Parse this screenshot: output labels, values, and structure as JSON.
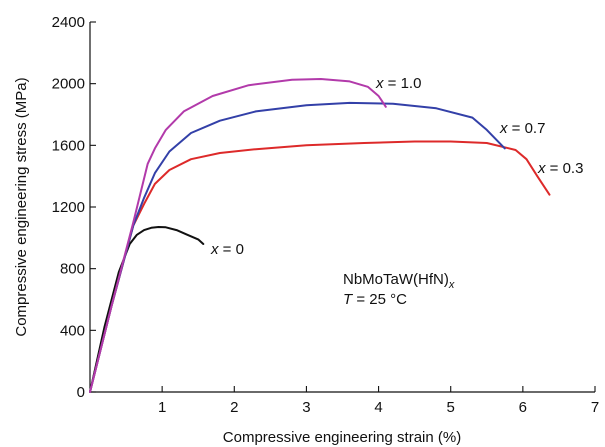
{
  "chart_data": {
    "type": "line",
    "xlabel": "Compressive engineering strain (%)",
    "ylabel": "Compressive engineering stress (MPa)",
    "xlim": [
      0,
      7
    ],
    "ylim": [
      0,
      2400
    ],
    "xticks": [
      1,
      2,
      3,
      4,
      5,
      6,
      7
    ],
    "yticks": [
      0,
      400,
      800,
      1200,
      1600,
      2000,
      2400
    ],
    "grid": false,
    "annotation": {
      "formula_main": "NbMoTaW(HfN)",
      "formula_sub": "x",
      "temp_var": "T",
      "temp_value": " = 25 °C"
    },
    "series": [
      {
        "name": "x = 0",
        "label_var": "x",
        "label_value": " = 0",
        "color": "#111111",
        "x": [
          0.0,
          0.2,
          0.4,
          0.55,
          0.65,
          0.75,
          0.85,
          0.95,
          1.05,
          1.2,
          1.35,
          1.5,
          1.57
        ],
        "y": [
          0,
          420,
          780,
          960,
          1020,
          1050,
          1065,
          1070,
          1068,
          1050,
          1020,
          990,
          960
        ]
      },
      {
        "name": "x = 0.3",
        "label_var": "x",
        "label_value": " = 0.3",
        "color": "#dd2a2a",
        "x": [
          0.0,
          0.3,
          0.6,
          0.75,
          0.9,
          1.1,
          1.4,
          1.8,
          2.3,
          3.0,
          3.8,
          4.5,
          5.0,
          5.5,
          5.9,
          6.05,
          6.2,
          6.37
        ],
        "y": [
          0,
          560,
          1080,
          1220,
          1350,
          1440,
          1510,
          1550,
          1575,
          1600,
          1615,
          1625,
          1625,
          1615,
          1570,
          1510,
          1400,
          1280
        ]
      },
      {
        "name": "x = 0.7",
        "label_var": "x",
        "label_value": " = 0.7",
        "color": "#3340a8",
        "x": [
          0.0,
          0.3,
          0.6,
          0.75,
          0.9,
          1.1,
          1.4,
          1.8,
          2.3,
          3.0,
          3.6,
          4.2,
          4.8,
          5.3,
          5.5,
          5.75
        ],
        "y": [
          0,
          560,
          1080,
          1260,
          1420,
          1560,
          1680,
          1760,
          1820,
          1860,
          1875,
          1870,
          1840,
          1780,
          1700,
          1580
        ]
      },
      {
        "name": "x = 1.0",
        "label_var": "x",
        "label_value": " = 1.0",
        "color": "#b23aaa",
        "x": [
          0.0,
          0.3,
          0.6,
          0.8,
          0.9,
          1.05,
          1.3,
          1.7,
          2.2,
          2.8,
          3.2,
          3.6,
          3.85,
          4.0,
          4.1
        ],
        "y": [
          0,
          560,
          1100,
          1480,
          1580,
          1700,
          1820,
          1920,
          1990,
          2025,
          2030,
          2015,
          1980,
          1920,
          1850
        ]
      }
    ]
  }
}
